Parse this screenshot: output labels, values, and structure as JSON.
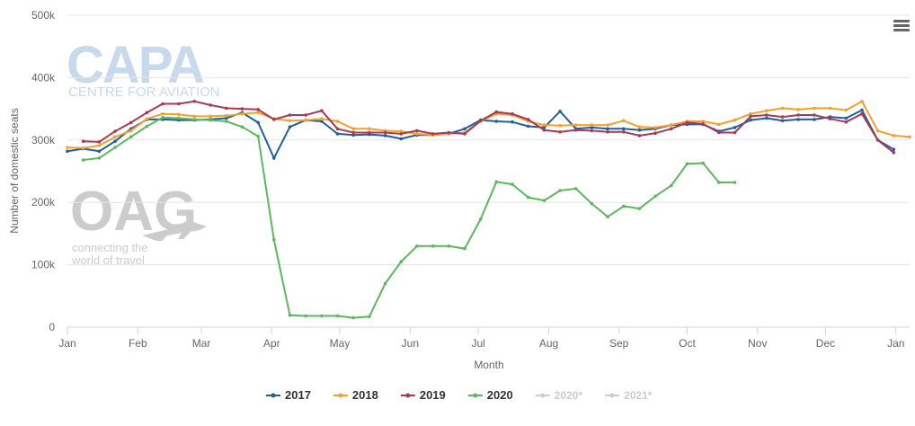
{
  "watermarks": {
    "capa": "CAPA",
    "capa_sub": "CENTRE FOR AVIATION",
    "oag": "OAG",
    "oag_sub1": "connecting the",
    "oag_sub2": "world of travel"
  },
  "menu_icon": "hamburger-menu-icon",
  "chart_data": {
    "type": "line",
    "title": "",
    "xlabel": "Month",
    "ylabel": "Number of domestic seats",
    "ylim": [
      0,
      500000
    ],
    "y_ticks": [
      {
        "value": 0,
        "label": "0"
      },
      {
        "value": 100000,
        "label": "100k"
      },
      {
        "value": 200000,
        "label": "200k"
      },
      {
        "value": 300000,
        "label": "300k"
      },
      {
        "value": 400000,
        "label": "400k"
      },
      {
        "value": 500000,
        "label": "500k"
      }
    ],
    "x_unit": "week",
    "xlim": [
      0,
      53
    ],
    "x_ticks": [
      {
        "value": 0,
        "label": "Jan"
      },
      {
        "value": 4.43,
        "label": "Feb"
      },
      {
        "value": 8.43,
        "label": "Mar"
      },
      {
        "value": 12.86,
        "label": "Apr"
      },
      {
        "value": 17.14,
        "label": "May"
      },
      {
        "value": 21.57,
        "label": "Jun"
      },
      {
        "value": 25.86,
        "label": "Jul"
      },
      {
        "value": 30.29,
        "label": "Aug"
      },
      {
        "value": 34.71,
        "label": "Sep"
      },
      {
        "value": 39,
        "label": "Oct"
      },
      {
        "value": 43.43,
        "label": "Nov"
      },
      {
        "value": 47.71,
        "label": "Dec"
      },
      {
        "value": 52.14,
        "label": "Jan"
      }
    ],
    "grid": "horizontal",
    "legend_position": "bottom",
    "series": [
      {
        "name": "2017",
        "color": "#1f5fa0",
        "x": [
          0,
          1,
          2,
          3,
          4,
          5,
          6,
          7,
          8,
          9,
          10,
          11,
          12,
          13,
          14,
          15,
          16,
          17,
          18,
          19,
          20,
          21,
          22,
          23,
          24,
          25,
          26,
          27,
          28,
          29,
          30,
          31,
          32,
          33,
          34,
          35,
          36,
          37,
          38,
          39,
          40,
          41,
          42,
          43,
          44,
          45,
          46,
          47,
          48,
          49,
          50,
          51,
          52
        ],
        "values": [
          282000,
          286000,
          282000,
          298000,
          318000,
          333000,
          333000,
          332000,
          332000,
          333000,
          335000,
          344000,
          328000,
          271000,
          321000,
          332000,
          330000,
          310000,
          308000,
          309000,
          307000,
          302000,
          308000,
          308000,
          310000,
          318000,
          332000,
          330000,
          329000,
          322000,
          320000,
          346000,
          318000,
          320000,
          318000,
          318000,
          316000,
          318000,
          324000,
          325000,
          325000,
          314000,
          320000,
          332000,
          335000,
          331000,
          333000,
          333000,
          337000,
          335000,
          348000,
          300000,
          285000
        ]
      },
      {
        "name": "2018",
        "color": "#f5a02a",
        "x": [
          0,
          1,
          2,
          3,
          4,
          5,
          6,
          7,
          8,
          9,
          10,
          11,
          12,
          13,
          14,
          15,
          16,
          17,
          18,
          19,
          20,
          21,
          22,
          23,
          24,
          25,
          26,
          27,
          28,
          29,
          30,
          31,
          32,
          33,
          34,
          35,
          36,
          37,
          38,
          39,
          40,
          41,
          42,
          43,
          44,
          45,
          46,
          47,
          48,
          49,
          50,
          51,
          52,
          53
        ],
        "values": [
          288000,
          287000,
          291000,
          305000,
          315000,
          334000,
          342000,
          341000,
          338000,
          338000,
          339000,
          342000,
          344000,
          334000,
          331000,
          332000,
          334000,
          330000,
          318000,
          318000,
          315000,
          314000,
          310000,
          308000,
          310000,
          312000,
          330000,
          342000,
          340000,
          330000,
          324000,
          323000,
          324000,
          324000,
          324000,
          331000,
          321000,
          320000,
          324000,
          330000,
          330000,
          325000,
          332000,
          342000,
          347000,
          351000,
          349000,
          351000,
          351000,
          348000,
          362000,
          315000,
          307000,
          305000
        ]
      },
      {
        "name": "2019",
        "color": "#a83a53",
        "x": [
          1,
          2,
          3,
          4,
          5,
          6,
          7,
          8,
          9,
          10,
          11,
          12,
          13,
          14,
          15,
          16,
          17,
          18,
          19,
          20,
          21,
          22,
          23,
          24,
          25,
          26,
          27,
          28,
          29,
          30,
          31,
          32,
          33,
          34,
          35,
          36,
          37,
          38,
          39,
          40,
          41,
          42,
          43,
          44,
          45,
          46,
          47,
          48,
          49,
          50,
          51,
          52
        ],
        "values": [
          298000,
          297000,
          314000,
          328000,
          344000,
          358000,
          358000,
          362000,
          356000,
          351000,
          350000,
          349000,
          333000,
          340000,
          340000,
          347000,
          318000,
          312000,
          312000,
          312000,
          310000,
          315000,
          310000,
          312000,
          310000,
          331000,
          345000,
          342000,
          333000,
          316000,
          313000,
          316000,
          315000,
          313000,
          313000,
          307000,
          311000,
          318000,
          328000,
          326000,
          312000,
          312000,
          338000,
          340000,
          337000,
          340000,
          340000,
          334000,
          329000,
          342000,
          300000,
          280000
        ]
      },
      {
        "name": "2020",
        "color": "#5cb85c",
        "x": [
          1,
          2,
          3,
          4,
          5,
          6,
          7,
          8,
          9,
          10,
          11,
          12,
          13,
          14,
          15,
          16,
          17,
          18,
          19,
          20,
          21,
          22,
          23,
          24,
          25,
          26,
          27,
          28,
          29,
          30,
          31,
          32,
          33,
          34,
          35,
          36,
          37,
          38,
          39,
          40,
          41,
          42
        ],
        "values": [
          268000,
          271000,
          288000,
          305000,
          322000,
          336000,
          335000,
          333000,
          332000,
          330000,
          321000,
          306000,
          140000,
          19000,
          18000,
          18000,
          18000,
          15000,
          17000,
          70000,
          105000,
          130000,
          130000,
          130000,
          126000,
          173000,
          233000,
          229000,
          208000,
          203000,
          219000,
          222000,
          198000,
          177000,
          194000,
          190000,
          210000,
          227000,
          262000,
          263000,
          232000,
          232000
        ]
      },
      {
        "name": "2020*",
        "color": "#cccccc",
        "x": [],
        "values": []
      },
      {
        "name": "2021*",
        "color": "#cccccc",
        "x": [],
        "values": []
      }
    ]
  }
}
